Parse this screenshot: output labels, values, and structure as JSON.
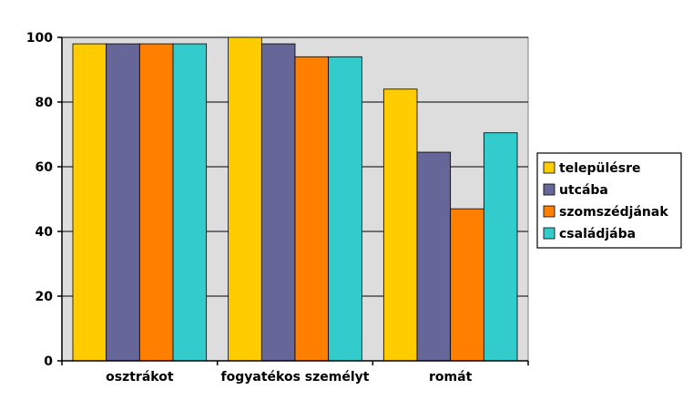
{
  "chart_data": {
    "type": "bar",
    "title": "",
    "xlabel": "",
    "ylabel": "",
    "categories": [
      "osztrákot",
      "fogyatékos személyt",
      "romát"
    ],
    "series": [
      {
        "name": "településre",
        "color": "#FFCC00",
        "values": [
          98,
          100,
          84
        ]
      },
      {
        "name": "utcába",
        "color": "#666699",
        "values": [
          98,
          98,
          64.5
        ]
      },
      {
        "name": "szomszédjának",
        "color": "#FF8000",
        "values": [
          98,
          94,
          47
        ]
      },
      {
        "name": "családjába",
        "color": "#33CCCC",
        "values": [
          98,
          94,
          70.5
        ]
      }
    ],
    "ylim": [
      0,
      100
    ],
    "yticks": [
      0,
      20,
      40,
      60,
      80,
      100
    ],
    "grid": true,
    "plot_background": "#DDDDDD",
    "legend_position": "right"
  }
}
